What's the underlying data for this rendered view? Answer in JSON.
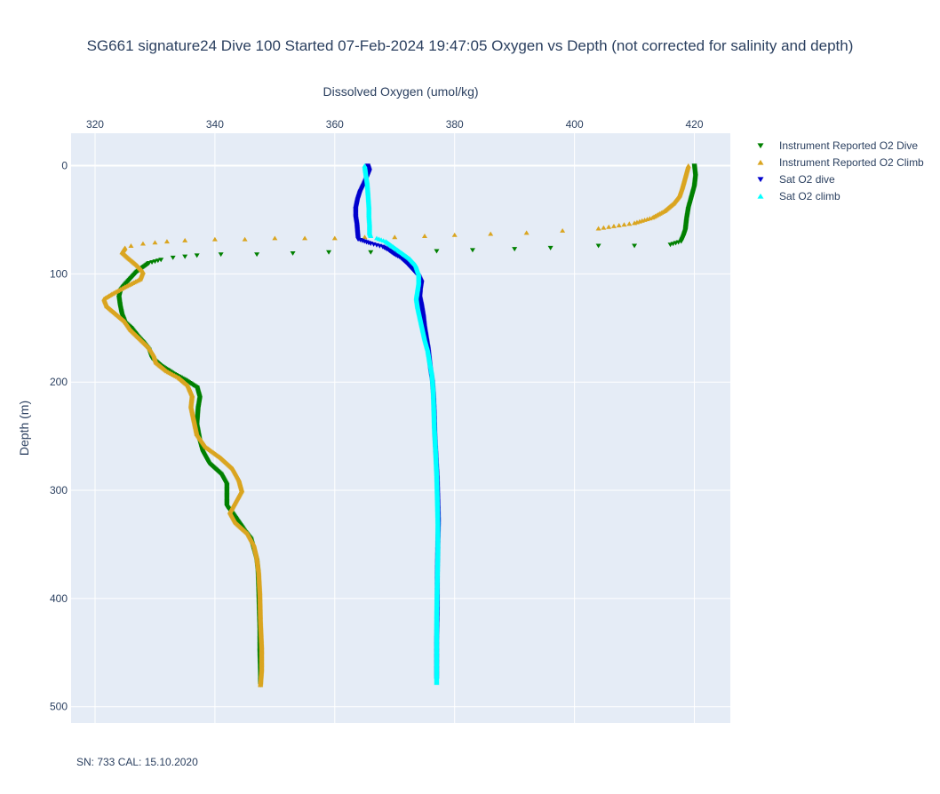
{
  "chart_data": {
    "type": "scatter",
    "title": "SG661 signature24 Dive 100 Started 07-Feb-2024 19:47:05  Oxygen vs Depth (not corrected for salinity and depth)",
    "xlabel": "Dissolved Oxygen (umol/kg)",
    "ylabel": "Depth (m)",
    "x_axis_position": "top",
    "xlim": [
      316,
      426
    ],
    "ylim": [
      515,
      -30
    ],
    "y_reversed": true,
    "x_ticks": [
      320,
      340,
      360,
      380,
      400,
      420
    ],
    "y_ticks": [
      0,
      100,
      200,
      300,
      400,
      500
    ],
    "grid": true,
    "legend_position": "right",
    "footnote": "SN: 733  CAL: 15.10.2020",
    "series": [
      {
        "name": "Instrument Reported O2 Dive",
        "marker": "triangle-down",
        "color": "#008000",
        "points": [
          [
            420,
            0
          ],
          [
            420.2,
            10
          ],
          [
            420,
            20
          ],
          [
            419.5,
            30
          ],
          [
            419,
            40
          ],
          [
            418.7,
            50
          ],
          [
            418.5,
            60
          ],
          [
            418.2,
            65
          ],
          [
            417.8,
            70
          ],
          [
            416,
            73
          ],
          [
            410,
            74
          ],
          [
            404,
            74
          ],
          [
            396,
            76
          ],
          [
            390,
            77
          ],
          [
            383,
            78
          ],
          [
            377,
            79
          ],
          [
            366,
            80
          ],
          [
            359,
            80
          ],
          [
            353,
            81
          ],
          [
            347,
            82
          ],
          [
            341,
            82
          ],
          [
            337,
            83
          ],
          [
            335,
            84
          ],
          [
            333,
            85
          ],
          [
            331,
            87
          ],
          [
            329,
            90
          ],
          [
            328,
            94
          ],
          [
            327,
            98
          ],
          [
            326,
            104
          ],
          [
            325,
            110
          ],
          [
            324.3,
            115
          ],
          [
            324,
            122
          ],
          [
            324.2,
            130
          ],
          [
            324.5,
            138
          ],
          [
            325,
            145
          ],
          [
            326,
            150
          ],
          [
            327,
            157
          ],
          [
            328,
            163
          ],
          [
            329,
            170
          ],
          [
            329.5,
            178
          ],
          [
            331,
            185
          ],
          [
            333,
            192
          ],
          [
            335,
            198
          ],
          [
            337,
            205
          ],
          [
            337.5,
            215
          ],
          [
            337.2,
            225
          ],
          [
            337,
            240
          ],
          [
            337.5,
            255
          ],
          [
            338,
            265
          ],
          [
            339,
            275
          ],
          [
            341,
            285
          ],
          [
            342,
            295
          ],
          [
            342,
            305
          ],
          [
            342,
            315
          ],
          [
            343,
            322
          ],
          [
            344,
            330
          ],
          [
            345,
            338
          ],
          [
            346,
            345
          ],
          [
            346.5,
            355
          ],
          [
            347,
            365
          ],
          [
            347.2,
            375
          ],
          [
            347.3,
            390
          ],
          [
            347.4,
            410
          ],
          [
            347.5,
            430
          ],
          [
            347.5,
            450
          ],
          [
            347.6,
            470
          ],
          [
            347.6,
            480
          ]
        ]
      },
      {
        "name": "Instrument Reported O2 Climb",
        "marker": "triangle-up",
        "color": "#DAA520",
        "points": [
          [
            419,
            0
          ],
          [
            418.5,
            10
          ],
          [
            418,
            20
          ],
          [
            417.5,
            28
          ],
          [
            416.5,
            35
          ],
          [
            415,
            42
          ],
          [
            413,
            48
          ],
          [
            410,
            53
          ],
          [
            404,
            58
          ],
          [
            398,
            60
          ],
          [
            392,
            62
          ],
          [
            386,
            63
          ],
          [
            380,
            64
          ],
          [
            375,
            65
          ],
          [
            370,
            66
          ],
          [
            365,
            66
          ],
          [
            360,
            67
          ],
          [
            355,
            67
          ],
          [
            350,
            67
          ],
          [
            345,
            68
          ],
          [
            340,
            68
          ],
          [
            335,
            69
          ],
          [
            332,
            70
          ],
          [
            330,
            71
          ],
          [
            328,
            72
          ],
          [
            326,
            74
          ],
          [
            325,
            76
          ],
          [
            324.5,
            80
          ],
          [
            325.5,
            85
          ],
          [
            327,
            92
          ],
          [
            328,
            98
          ],
          [
            327.5,
            105
          ],
          [
            325,
            112
          ],
          [
            323,
            118
          ],
          [
            321.5,
            123
          ],
          [
            322,
            130
          ],
          [
            323.5,
            137
          ],
          [
            325,
            144
          ],
          [
            326,
            152
          ],
          [
            327.5,
            160
          ],
          [
            329,
            168
          ],
          [
            329.8,
            175
          ],
          [
            330.2,
            182
          ],
          [
            332,
            190
          ],
          [
            334,
            196
          ],
          [
            335.5,
            203
          ],
          [
            336.2,
            212
          ],
          [
            336,
            222
          ],
          [
            336.5,
            235
          ],
          [
            337,
            248
          ],
          [
            338.5,
            260
          ],
          [
            341,
            270
          ],
          [
            343,
            280
          ],
          [
            344,
            290
          ],
          [
            344.5,
            300
          ],
          [
            343.5,
            310
          ],
          [
            342.5,
            320
          ],
          [
            343.5,
            330
          ],
          [
            345.5,
            340
          ],
          [
            346.5,
            350
          ],
          [
            347,
            362
          ],
          [
            347.3,
            375
          ],
          [
            347.5,
            395
          ],
          [
            347.6,
            420
          ],
          [
            347.8,
            445
          ],
          [
            347.8,
            465
          ],
          [
            347.6,
            480
          ]
        ]
      },
      {
        "name": "Sat O2 dive",
        "marker": "triangle-down",
        "color": "#0000CD",
        "points": [
          [
            365.5,
            0
          ],
          [
            365.8,
            5
          ],
          [
            365.3,
            12
          ],
          [
            364.8,
            18
          ],
          [
            364.2,
            25
          ],
          [
            363.8,
            32
          ],
          [
            363.5,
            40
          ],
          [
            363.5,
            48
          ],
          [
            363.7,
            55
          ],
          [
            363.8,
            62
          ],
          [
            363.9,
            68
          ],
          [
            366,
            72
          ],
          [
            368,
            75
          ],
          [
            369,
            78
          ],
          [
            370,
            82
          ],
          [
            371,
            85
          ],
          [
            372,
            90
          ],
          [
            373,
            96
          ],
          [
            374,
            102
          ],
          [
            374.5,
            108
          ],
          [
            374.3,
            115
          ],
          [
            374.2,
            122
          ],
          [
            374.5,
            130
          ],
          [
            374.8,
            140
          ],
          [
            375,
            150
          ],
          [
            375.3,
            160
          ],
          [
            375.6,
            170
          ],
          [
            375.8,
            180
          ],
          [
            376,
            190
          ],
          [
            376.3,
            200
          ],
          [
            376.5,
            215
          ],
          [
            376.6,
            230
          ],
          [
            376.7,
            250
          ],
          [
            376.9,
            270
          ],
          [
            377.1,
            290
          ],
          [
            377.2,
            310
          ],
          [
            377.3,
            330
          ],
          [
            377.2,
            350
          ],
          [
            377.1,
            380
          ],
          [
            377.1,
            410
          ],
          [
            377,
            440
          ],
          [
            377,
            460
          ],
          [
            377,
            475
          ]
        ]
      },
      {
        "name": "Sat O2 climb",
        "marker": "triangle-up",
        "color": "#00FFFF",
        "points": [
          [
            365,
            0
          ],
          [
            365.2,
            8
          ],
          [
            365.4,
            15
          ],
          [
            365.5,
            22
          ],
          [
            365.6,
            30
          ],
          [
            365.7,
            38
          ],
          [
            365.7,
            46
          ],
          [
            365.8,
            54
          ],
          [
            365.8,
            62
          ],
          [
            366,
            65
          ],
          [
            367,
            67
          ],
          [
            368.5,
            70
          ],
          [
            369.5,
            74
          ],
          [
            371,
            80
          ],
          [
            372.5,
            86
          ],
          [
            373.5,
            92
          ],
          [
            374,
            100
          ],
          [
            374,
            108
          ],
          [
            373.8,
            115
          ],
          [
            373.6,
            122
          ],
          [
            373.8,
            130
          ],
          [
            374.2,
            140
          ],
          [
            374.6,
            150
          ],
          [
            375,
            160
          ],
          [
            375.5,
            170
          ],
          [
            375.8,
            180
          ],
          [
            376.2,
            192
          ],
          [
            376.4,
            205
          ],
          [
            376.5,
            220
          ],
          [
            376.6,
            240
          ],
          [
            376.8,
            260
          ],
          [
            377,
            285
          ],
          [
            377.1,
            305
          ],
          [
            377.2,
            330
          ],
          [
            377.2,
            355
          ],
          [
            377.1,
            385
          ],
          [
            377,
            415
          ],
          [
            377,
            445
          ],
          [
            377,
            465
          ],
          [
            377,
            478
          ]
        ]
      }
    ]
  }
}
